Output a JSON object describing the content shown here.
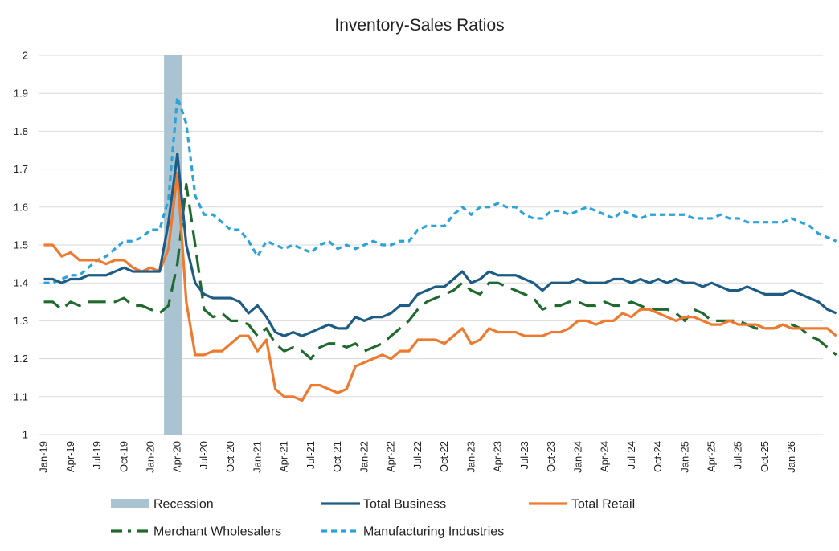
{
  "chart_data": {
    "type": "line",
    "title": "Inventory-Sales Ratios",
    "xlabel": "",
    "ylabel": "",
    "ylim": [
      1,
      2
    ],
    "yticks": [
      "1",
      "1.1",
      "1.2",
      "1.3",
      "1.4",
      "1.5",
      "1.6",
      "1.7",
      "1.8",
      "1.9",
      "2"
    ],
    "x_tick_labels": [
      "Jan-19",
      "Apr-19",
      "Jul-19",
      "Oct-19",
      "Jan-20",
      "Apr-20",
      "Jul-20",
      "Oct-20",
      "Jan-21",
      "Apr-21",
      "Jul-21",
      "Oct-21",
      "Jan-22",
      "Apr-22",
      "Jul-22",
      "Oct-22",
      "Jan-23",
      "Apr-23",
      "Jul-23",
      "Oct-23",
      "Jan-24",
      "Apr-24",
      "Jul-24",
      "Oct-24",
      "Jan-25",
      "Apr-25",
      "Jul-25",
      "Oct-25",
      "Jan-26"
    ],
    "x_start": "Jan-19",
    "x_end": "Apr-26",
    "grid": true,
    "legend_position": "bottom",
    "recession": {
      "name": "Recession",
      "start": "Mar-20",
      "end": "Apr-20",
      "color": "#a9c4d0"
    },
    "series": [
      {
        "name": "Total Business",
        "color": "#1f5c85",
        "style": "solid",
        "values": [
          1.41,
          1.41,
          1.4,
          1.41,
          1.41,
          1.42,
          1.42,
          1.42,
          1.43,
          1.44,
          1.43,
          1.43,
          1.43,
          1.43,
          1.56,
          1.74,
          1.5,
          1.4,
          1.37,
          1.36,
          1.36,
          1.36,
          1.35,
          1.32,
          1.34,
          1.31,
          1.27,
          1.26,
          1.27,
          1.26,
          1.27,
          1.28,
          1.29,
          1.28,
          1.28,
          1.31,
          1.3,
          1.31,
          1.31,
          1.32,
          1.34,
          1.34,
          1.37,
          1.38,
          1.39,
          1.39,
          1.41,
          1.43,
          1.4,
          1.41,
          1.43,
          1.42,
          1.42,
          1.42,
          1.41,
          1.4,
          1.38,
          1.4,
          1.4,
          1.4,
          1.41,
          1.4,
          1.4,
          1.4,
          1.41,
          1.41,
          1.4,
          1.41,
          1.4,
          1.41,
          1.4,
          1.41,
          1.4,
          1.4,
          1.39,
          1.4,
          1.39,
          1.38,
          1.38,
          1.39,
          1.38,
          1.37,
          1.37,
          1.37,
          1.38,
          1.37,
          1.36,
          1.35,
          1.33,
          1.32
        ]
      },
      {
        "name": "Total Retail",
        "color": "#ee7a30",
        "style": "solid",
        "values": [
          1.5,
          1.5,
          1.47,
          1.48,
          1.46,
          1.46,
          1.46,
          1.45,
          1.46,
          1.46,
          1.44,
          1.43,
          1.44,
          1.43,
          1.49,
          1.69,
          1.35,
          1.21,
          1.21,
          1.22,
          1.22,
          1.24,
          1.26,
          1.26,
          1.22,
          1.25,
          1.12,
          1.1,
          1.1,
          1.09,
          1.13,
          1.13,
          1.12,
          1.11,
          1.12,
          1.18,
          1.19,
          1.2,
          1.21,
          1.2,
          1.22,
          1.22,
          1.25,
          1.25,
          1.25,
          1.24,
          1.26,
          1.28,
          1.24,
          1.25,
          1.28,
          1.27,
          1.27,
          1.27,
          1.26,
          1.26,
          1.26,
          1.27,
          1.27,
          1.28,
          1.3,
          1.3,
          1.29,
          1.3,
          1.3,
          1.32,
          1.31,
          1.33,
          1.33,
          1.32,
          1.31,
          1.3,
          1.31,
          1.31,
          1.3,
          1.29,
          1.29,
          1.3,
          1.29,
          1.29,
          1.29,
          1.28,
          1.28,
          1.29,
          1.28,
          1.28,
          1.28,
          1.28,
          1.28,
          1.26
        ]
      },
      {
        "name": "Merchant Wholesalers",
        "color": "#216a2f",
        "style": "long-dash",
        "values": [
          1.35,
          1.35,
          1.33,
          1.35,
          1.34,
          1.35,
          1.35,
          1.35,
          1.35,
          1.36,
          1.34,
          1.34,
          1.33,
          1.32,
          1.34,
          1.45,
          1.66,
          1.5,
          1.33,
          1.31,
          1.32,
          1.3,
          1.3,
          1.29,
          1.26,
          1.28,
          1.24,
          1.22,
          1.23,
          1.22,
          1.2,
          1.23,
          1.24,
          1.24,
          1.23,
          1.24,
          1.22,
          1.23,
          1.24,
          1.26,
          1.28,
          1.3,
          1.33,
          1.35,
          1.36,
          1.37,
          1.38,
          1.4,
          1.38,
          1.37,
          1.4,
          1.4,
          1.39,
          1.38,
          1.37,
          1.36,
          1.33,
          1.34,
          1.34,
          1.35,
          1.35,
          1.34,
          1.34,
          1.35,
          1.34,
          1.34,
          1.35,
          1.34,
          1.33,
          1.33,
          1.33,
          1.32,
          1.3,
          1.33,
          1.32,
          1.3,
          1.3,
          1.3,
          1.3,
          1.29,
          1.28,
          1.28,
          1.28,
          1.29,
          1.29,
          1.28,
          1.26,
          1.25,
          1.23,
          1.21
        ]
      },
      {
        "name": "Manufacturing Industries",
        "color": "#2ba3d8",
        "style": "short-dash",
        "values": [
          1.4,
          1.4,
          1.41,
          1.42,
          1.42,
          1.44,
          1.46,
          1.47,
          1.49,
          1.51,
          1.51,
          1.52,
          1.54,
          1.54,
          1.62,
          1.89,
          1.82,
          1.63,
          1.58,
          1.58,
          1.56,
          1.54,
          1.54,
          1.51,
          1.47,
          1.51,
          1.5,
          1.49,
          1.5,
          1.49,
          1.48,
          1.5,
          1.51,
          1.49,
          1.5,
          1.49,
          1.5,
          1.51,
          1.5,
          1.5,
          1.51,
          1.51,
          1.54,
          1.55,
          1.55,
          1.55,
          1.58,
          1.6,
          1.58,
          1.6,
          1.6,
          1.61,
          1.6,
          1.6,
          1.58,
          1.57,
          1.57,
          1.59,
          1.59,
          1.58,
          1.59,
          1.6,
          1.59,
          1.58,
          1.57,
          1.59,
          1.58,
          1.57,
          1.58,
          1.58,
          1.58,
          1.58,
          1.58,
          1.57,
          1.57,
          1.57,
          1.58,
          1.57,
          1.57,
          1.56,
          1.56,
          1.56,
          1.56,
          1.56,
          1.57,
          1.56,
          1.55,
          1.53,
          1.52,
          1.51
        ]
      }
    ]
  }
}
